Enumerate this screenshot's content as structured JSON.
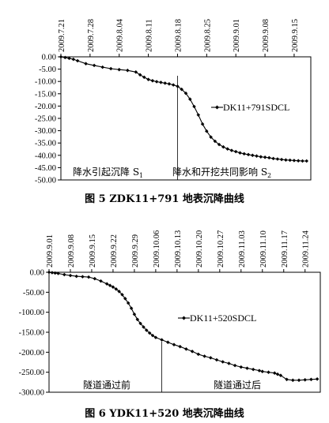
{
  "chart_data": [
    {
      "type": "line",
      "caption": "图 5   ZDK11+791 地表沉降曲线",
      "x_ticks": [
        "2009.7.21",
        "2009.7.28",
        "2009.8.04",
        "2009.8.11",
        "2009.8.18",
        "2009.8.25",
        "2009.9.01",
        "2009.9.08",
        "2009.9.15"
      ],
      "y_ticks": [
        "0.00",
        "-5.00",
        "-10.00",
        "-15.00",
        "-20.00",
        "-25.00",
        "-30.00",
        "-35.00",
        "-40.00",
        "-45.00",
        "-50.00"
      ],
      "ylim": [
        -50,
        0
      ],
      "x_range_days": [
        0,
        60
      ],
      "divider_day": 28,
      "annotations": [
        "降水引起沉降 S",
        "1",
        "降水和开挖共同影响 S",
        "2"
      ],
      "series": [
        {
          "name": "DK11+791SDCL",
          "x": [
            "2009.7.21",
            "2009.7.22",
            "2009.7.23",
            "2009.7.24",
            "2009.7.25",
            "2009.7.27",
            "2009.7.29",
            "2009.7.31",
            "2009.8.02",
            "2009.8.04",
            "2009.8.06",
            "2009.8.08",
            "2009.8.09",
            "2009.8.10",
            "2009.8.11",
            "2009.8.12",
            "2009.8.13",
            "2009.8.14",
            "2009.8.15",
            "2009.8.16",
            "2009.8.17",
            "2009.8.18",
            "2009.8.19",
            "2009.8.20",
            "2009.8.21",
            "2009.8.22",
            "2009.8.23",
            "2009.8.24",
            "2009.8.25",
            "2009.8.26",
            "2009.8.27",
            "2009.8.28",
            "2009.8.29",
            "2009.8.30",
            "2009.8.31",
            "2009.9.01",
            "2009.9.02",
            "2009.9.03",
            "2009.9.04",
            "2009.9.05",
            "2009.9.06",
            "2009.9.07",
            "2009.9.08",
            "2009.9.09",
            "2009.9.10",
            "2009.9.11",
            "2009.9.12",
            "2009.9.13",
            "2009.9.14",
            "2009.9.15",
            "2009.9.16",
            "2009.9.17",
            "2009.9.18"
          ],
          "y": [
            0,
            -0.3,
            -0.6,
            -1.0,
            -1.6,
            -2.8,
            -3.5,
            -4.2,
            -4.8,
            -5.2,
            -5.5,
            -6.2,
            -7.3,
            -8.3,
            -9.2,
            -9.7,
            -10.1,
            -10.4,
            -10.7,
            -11.0,
            -11.4,
            -12.0,
            -13.2,
            -14.8,
            -17.2,
            -20.2,
            -23.6,
            -27.3,
            -30.2,
            -32.6,
            -34.3,
            -35.6,
            -36.6,
            -37.4,
            -38.0,
            -38.5,
            -39.0,
            -39.4,
            -39.7,
            -40.0,
            -40.3,
            -40.6,
            -40.8,
            -41.0,
            -41.3,
            -41.5,
            -41.7,
            -41.9,
            -42.0,
            -42.1,
            -42.2,
            -42.3,
            -42.3
          ]
        }
      ]
    },
    {
      "type": "line",
      "caption": "图 6   YDK11+520 地表沉降曲线",
      "x_ticks": [
        "2009.9.01",
        "2009.9.08",
        "2009.9.15",
        "2009.9.22",
        "2009.9.29",
        "2009.10.06",
        "2009.10.13",
        "2009.10.20",
        "2009.10.27",
        "2009.11.03",
        "2009.11.10",
        "2009.11.17",
        "2009.11.24"
      ],
      "y_ticks": [
        "0.00",
        "-50.00",
        "-100.00",
        "-150.00",
        "-200.00",
        "-250.00",
        "-300.00"
      ],
      "ylim": [
        -300,
        0
      ],
      "x_range_days": [
        0,
        89
      ],
      "divider_day": 37,
      "annotations": [
        "隧道通过前",
        "隧道通过后"
      ],
      "series": [
        {
          "name": "DK11+520SDCL",
          "x": [
            "2009.9.01",
            "2009.9.02",
            "2009.9.03",
            "2009.9.04",
            "2009.9.06",
            "2009.9.08",
            "2009.9.10",
            "2009.9.12",
            "2009.9.14",
            "2009.9.16",
            "2009.9.18",
            "2009.9.20",
            "2009.9.21",
            "2009.9.22",
            "2009.9.23",
            "2009.9.24",
            "2009.9.25",
            "2009.9.26",
            "2009.9.27",
            "2009.9.28",
            "2009.9.29",
            "2009.9.30",
            "2009.10.01",
            "2009.10.02",
            "2009.10.03",
            "2009.10.04",
            "2009.10.05",
            "2009.10.06",
            "2009.10.08",
            "2009.10.10",
            "2009.10.12",
            "2009.10.14",
            "2009.10.16",
            "2009.10.18",
            "2009.10.20",
            "2009.10.22",
            "2009.10.24",
            "2009.10.26",
            "2009.10.28",
            "2009.10.30",
            "2009.11.01",
            "2009.11.03",
            "2009.11.05",
            "2009.11.07",
            "2009.11.09",
            "2009.11.10",
            "2009.11.12",
            "2009.11.14",
            "2009.11.15",
            "2009.11.16",
            "2009.11.18",
            "2009.11.20",
            "2009.11.22",
            "2009.11.24",
            "2009.11.26",
            "2009.11.28"
          ],
          "y": [
            0,
            -1,
            -2,
            -3,
            -6,
            -8,
            -10,
            -11,
            -12,
            -16,
            -22,
            -29,
            -33,
            -37,
            -42,
            -48,
            -56,
            -66,
            -77,
            -90,
            -105,
            -118,
            -128,
            -137,
            -145,
            -152,
            -158,
            -163,
            -169,
            -175,
            -181,
            -186,
            -192,
            -198,
            -205,
            -210,
            -214,
            -219,
            -224,
            -228,
            -233,
            -237,
            -240,
            -243,
            -246,
            -248,
            -250,
            -252,
            -255,
            -258,
            -268,
            -270,
            -270,
            -269,
            -268,
            -267
          ]
        }
      ]
    }
  ]
}
